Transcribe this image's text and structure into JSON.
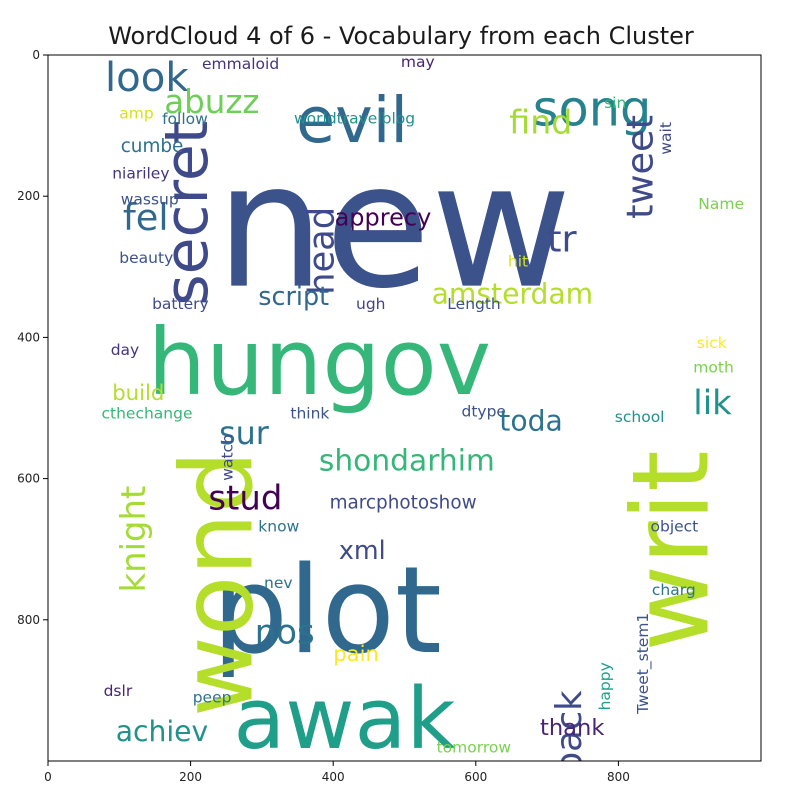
{
  "chart_data": {
    "type": "wordcloud",
    "title": "WordCloud 4 of 6 - Vocabulary from each Cluster",
    "xlim": [
      0,
      1000
    ],
    "ylim": [
      1000,
      0
    ],
    "x_ticks": [
      0,
      200,
      400,
      600,
      800
    ],
    "y_ticks": [
      0,
      200,
      400,
      600,
      800
    ],
    "colormap": "viridis",
    "words": [
      {
        "text": "new",
        "x": 235,
        "y": 100,
        "size": 244,
        "rotate": 0,
        "color": "#3b528b"
      },
      {
        "text": "hungov",
        "x": 140,
        "y": 360,
        "size": 130,
        "rotate": 0,
        "color": "#35b779"
      },
      {
        "text": "plot",
        "x": 230,
        "y": 690,
        "size": 170,
        "rotate": 0,
        "color": "#31688e"
      },
      {
        "text": "wond",
        "x": 165,
        "y": 560,
        "size": 140,
        "rotate": -90,
        "color": "#b5de2b"
      },
      {
        "text": "writ",
        "x": 795,
        "y": 560,
        "size": 150,
        "rotate": -90,
        "color": "#b5de2b"
      },
      {
        "text": "awak",
        "x": 260,
        "y": 870,
        "size": 120,
        "rotate": 0,
        "color": "#1f9e89"
      },
      {
        "text": "evil",
        "x": 348,
        "y": 40,
        "size": 90,
        "rotate": 0,
        "color": "#31688e"
      },
      {
        "text": "song",
        "x": 680,
        "y": 35,
        "size": 70,
        "rotate": 0,
        "color": "#26828e"
      },
      {
        "text": "secret",
        "x": 150,
        "y": 93,
        "size": 85,
        "rotate": -90,
        "color": "#3e4a89"
      },
      {
        "text": "look",
        "x": 80,
        "y": 0,
        "size": 57,
        "rotate": 0,
        "color": "#31688e"
      },
      {
        "text": "abuzz",
        "x": 163,
        "y": 40,
        "size": 46,
        "rotate": 0,
        "color": "#6ece58"
      },
      {
        "text": "find",
        "x": 647,
        "y": 67,
        "size": 47,
        "rotate": 0,
        "color": "#a5db36"
      },
      {
        "text": "tweet",
        "x": 803,
        "y": 85,
        "size": 52,
        "rotate": -90,
        "color": "#3e4a89"
      },
      {
        "text": "fel",
        "x": 105,
        "y": 200,
        "size": 52,
        "rotate": 0,
        "color": "#31688e"
      },
      {
        "text": "cumbe",
        "x": 102,
        "y": 115,
        "size": 26,
        "rotate": 0,
        "color": "#2c728e"
      },
      {
        "text": "niariley",
        "x": 90,
        "y": 155,
        "size": 22,
        "rotate": 0,
        "color": "#46337f"
      },
      {
        "text": "wassup",
        "x": 102,
        "y": 192,
        "size": 22,
        "rotate": 0,
        "color": "#3b528b"
      },
      {
        "text": "beauty",
        "x": 100,
        "y": 275,
        "size": 22,
        "rotate": 0,
        "color": "#3b528b"
      },
      {
        "text": "emmaloid",
        "x": 216,
        "y": 0,
        "size": 22,
        "rotate": 0,
        "color": "#46337f"
      },
      {
        "text": "may",
        "x": 495,
        "y": -3,
        "size": 22,
        "rotate": 0,
        "color": "#482475"
      },
      {
        "text": "amp",
        "x": 100,
        "y": 70,
        "size": 22,
        "rotate": 0,
        "color": "#d8e219"
      },
      {
        "text": "follow",
        "x": 160,
        "y": 78,
        "size": 22,
        "rotate": 0,
        "color": "#2c728e"
      },
      {
        "text": "worldtravelblog",
        "x": 345,
        "y": 77,
        "size": 22,
        "rotate": 0,
        "color": "#21918c"
      },
      {
        "text": "sin",
        "x": 780,
        "y": 55,
        "size": 22,
        "rotate": 0,
        "color": "#35b779"
      },
      {
        "text": "wait",
        "x": 855,
        "y": 95,
        "size": 22,
        "rotate": -90,
        "color": "#3e4a89"
      },
      {
        "text": "Name",
        "x": 912,
        "y": 198,
        "size": 22,
        "rotate": 0,
        "color": "#7ad151"
      },
      {
        "text": "head",
        "x": 358,
        "y": 215,
        "size": 50,
        "rotate": -90,
        "color": "#3e4a89"
      },
      {
        "text": "apprecy",
        "x": 402,
        "y": 210,
        "size": 34,
        "rotate": 0,
        "color": "#440154"
      },
      {
        "text": "tr",
        "x": 700,
        "y": 230,
        "size": 52,
        "rotate": 0,
        "color": "#3e4a89"
      },
      {
        "text": "hit",
        "x": 645,
        "y": 280,
        "size": 22,
        "rotate": 0,
        "color": "#d8e219"
      },
      {
        "text": "script",
        "x": 295,
        "y": 320,
        "size": 36,
        "rotate": 0,
        "color": "#31688e"
      },
      {
        "text": "amsterdam",
        "x": 538,
        "y": 315,
        "size": 40,
        "rotate": 0,
        "color": "#b5de2b"
      },
      {
        "text": "battery",
        "x": 146,
        "y": 340,
        "size": 22,
        "rotate": 0,
        "color": "#3e4a89"
      },
      {
        "text": "ugh",
        "x": 432,
        "y": 340,
        "size": 22,
        "rotate": 0,
        "color": "#414487"
      },
      {
        "text": "Length",
        "x": 560,
        "y": 340,
        "size": 22,
        "rotate": 0,
        "color": "#3b528b"
      },
      {
        "text": "day",
        "x": 88,
        "y": 405,
        "size": 22,
        "rotate": 0,
        "color": "#46337f"
      },
      {
        "text": "sick",
        "x": 910,
        "y": 395,
        "size": 22,
        "rotate": 0,
        "color": "#fde725"
      },
      {
        "text": "moth",
        "x": 905,
        "y": 430,
        "size": 22,
        "rotate": 0,
        "color": "#7ad151"
      },
      {
        "text": "build",
        "x": 90,
        "y": 460,
        "size": 30,
        "rotate": 0,
        "color": "#b5de2b"
      },
      {
        "text": "cthechange",
        "x": 75,
        "y": 495,
        "size": 22,
        "rotate": 0,
        "color": "#35b779"
      },
      {
        "text": "lik",
        "x": 905,
        "y": 465,
        "size": 48,
        "rotate": 0,
        "color": "#21918c"
      },
      {
        "text": "sur",
        "x": 240,
        "y": 510,
        "size": 45,
        "rotate": 0,
        "color": "#2c728e"
      },
      {
        "text": "watch",
        "x": 240,
        "y": 537,
        "size": 22,
        "rotate": -90,
        "color": "#3e4a89"
      },
      {
        "text": "think",
        "x": 340,
        "y": 495,
        "size": 22,
        "rotate": 0,
        "color": "#3b528b"
      },
      {
        "text": "dtype",
        "x": 580,
        "y": 492,
        "size": 22,
        "rotate": 0,
        "color": "#3b528b"
      },
      {
        "text": "toda",
        "x": 633,
        "y": 495,
        "size": 40,
        "rotate": 0,
        "color": "#2c728e"
      },
      {
        "text": "school",
        "x": 795,
        "y": 500,
        "size": 22,
        "rotate": 0,
        "color": "#21918c"
      },
      {
        "text": "shondarhim",
        "x": 380,
        "y": 550,
        "size": 42,
        "rotate": 0,
        "color": "#35b779"
      },
      {
        "text": "stud",
        "x": 225,
        "y": 600,
        "size": 48,
        "rotate": 0,
        "color": "#440154"
      },
      {
        "text": "knight",
        "x": 95,
        "y": 610,
        "size": 48,
        "rotate": -90,
        "color": "#a5db36"
      },
      {
        "text": "marcphotoshow",
        "x": 395,
        "y": 620,
        "size": 26,
        "rotate": 0,
        "color": "#3e4a89"
      },
      {
        "text": "know",
        "x": 295,
        "y": 655,
        "size": 22,
        "rotate": 0,
        "color": "#2c728e"
      },
      {
        "text": "xml",
        "x": 408,
        "y": 680,
        "size": 36,
        "rotate": 0,
        "color": "#3e4a89"
      },
      {
        "text": "object",
        "x": 845,
        "y": 655,
        "size": 22,
        "rotate": 0,
        "color": "#3b528b"
      },
      {
        "text": "nev",
        "x": 303,
        "y": 735,
        "size": 22,
        "rotate": 0,
        "color": "#2c728e"
      },
      {
        "text": "charg",
        "x": 847,
        "y": 745,
        "size": 22,
        "rotate": 0,
        "color": "#2c728e"
      },
      {
        "text": "Tweet_stem1",
        "x": 823,
        "y": 790,
        "size": 22,
        "rotate": -90,
        "color": "#3b528b"
      },
      {
        "text": "nos",
        "x": 290,
        "y": 790,
        "size": 48,
        "rotate": 0,
        "color": "#2c728e"
      },
      {
        "text": "pain",
        "x": 400,
        "y": 830,
        "size": 30,
        "rotate": 0,
        "color": "#fde725"
      },
      {
        "text": "back",
        "x": 705,
        "y": 900,
        "size": 50,
        "rotate": -90,
        "color": "#3e4a89"
      },
      {
        "text": "happy",
        "x": 770,
        "y": 860,
        "size": 22,
        "rotate": -90,
        "color": "#1f9e89"
      },
      {
        "text": "dslr",
        "x": 78,
        "y": 888,
        "size": 22,
        "rotate": 0,
        "color": "#482475"
      },
      {
        "text": "peep",
        "x": 203,
        "y": 897,
        "size": 22,
        "rotate": 0,
        "color": "#2c728e"
      },
      {
        "text": "achiev",
        "x": 95,
        "y": 935,
        "size": 40,
        "rotate": 0,
        "color": "#21918c"
      },
      {
        "text": "thank",
        "x": 690,
        "y": 935,
        "size": 32,
        "rotate": 0,
        "color": "#482475"
      },
      {
        "text": "tomorrow",
        "x": 545,
        "y": 968,
        "size": 22,
        "rotate": 0,
        "color": "#7ad151"
      }
    ]
  }
}
